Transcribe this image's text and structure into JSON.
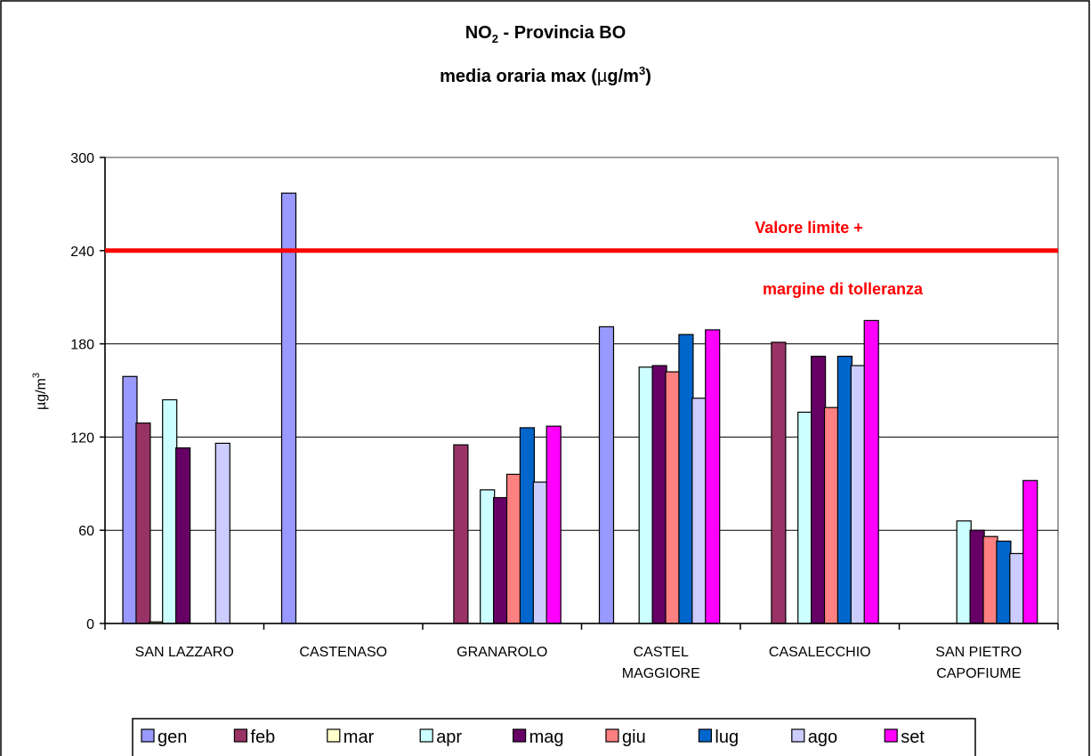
{
  "chart_data": {
    "type": "bar",
    "title_line1": {
      "main": "NO",
      "sub": "2",
      "rest": " - Provincia BO"
    },
    "title_line2": {
      "pre": "media oraria max (",
      "mu": "µ",
      "mid": "g/m",
      "sup": "3",
      "post": ")"
    },
    "ylabel": {
      "main": "µg/m",
      "sup": "3"
    },
    "xlabel": "",
    "ylim": [
      0,
      300
    ],
    "yticks": [
      0,
      60,
      120,
      180,
      240,
      300
    ],
    "grid": true,
    "legend_position": "bottom",
    "categories": [
      [
        "SAN LAZZARO"
      ],
      [
        "CASTENASO"
      ],
      [
        "GRANAROLO"
      ],
      [
        "CASTEL",
        "MAGGIORE"
      ],
      [
        "CASALECCHIO"
      ],
      [
        "SAN PIETRO",
        "CAPOFIUME"
      ]
    ],
    "series": [
      {
        "name": "gen",
        "color": "#9999ff",
        "values": [
          159,
          277,
          null,
          191,
          null,
          null
        ]
      },
      {
        "name": "feb",
        "color": "#993366",
        "values": [
          129,
          null,
          115,
          null,
          181,
          null
        ]
      },
      {
        "name": "mar",
        "color": "#ffffcc",
        "values": [
          1,
          null,
          null,
          null,
          null,
          null
        ]
      },
      {
        "name": "apr",
        "color": "#ccffff",
        "values": [
          144,
          null,
          86,
          165,
          136,
          66
        ]
      },
      {
        "name": "mag",
        "color": "#660066",
        "values": [
          113,
          null,
          81,
          166,
          172,
          60
        ]
      },
      {
        "name": "giu",
        "color": "#ff8080",
        "values": [
          null,
          null,
          96,
          162,
          139,
          56
        ]
      },
      {
        "name": "lug",
        "color": "#0066cc",
        "values": [
          null,
          null,
          126,
          186,
          172,
          53
        ]
      },
      {
        "name": "ago",
        "color": "#ccccff",
        "values": [
          116,
          null,
          91,
          145,
          166,
          45
        ]
      },
      {
        "name": "set",
        "color": "#ff00ff",
        "values": [
          null,
          null,
          127,
          189,
          195,
          92
        ]
      }
    ],
    "threshold": {
      "value": 240,
      "color": "#ff0000",
      "label_line1": "Valore limite +",
      "label_line2": "margine di tolleranza"
    }
  }
}
